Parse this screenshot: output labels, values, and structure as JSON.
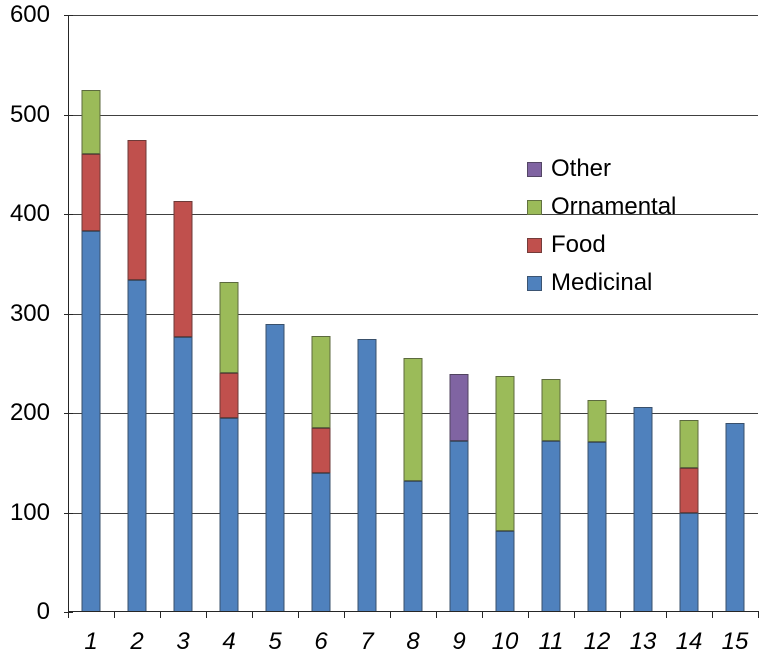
{
  "chart_data": {
    "type": "bar",
    "stacked": true,
    "title": "",
    "xlabel": "",
    "ylabel": "",
    "grid": true,
    "ylim": [
      0,
      600
    ],
    "ytick_interval": 100,
    "yticks": [
      "0",
      "100",
      "200",
      "300",
      "400",
      "500",
      "600"
    ],
    "categories": [
      "1",
      "2",
      "3",
      "4",
      "5",
      "6",
      "7",
      "8",
      "9",
      "10",
      "11",
      "12",
      "13",
      "14",
      "15"
    ],
    "series": [
      {
        "name": "Medicinal",
        "color": "#4F81BD",
        "values": [
          383,
          334,
          276,
          195,
          289,
          140,
          274,
          132,
          172,
          81,
          172,
          171,
          206,
          100,
          190
        ]
      },
      {
        "name": "Food",
        "color": "#C0504D",
        "values": [
          77,
          140,
          137,
          45,
          0,
          45,
          0,
          0,
          0,
          0,
          0,
          0,
          0,
          45,
          0
        ]
      },
      {
        "name": "Ornamental",
        "color": "#9BBB59",
        "values": [
          65,
          0,
          0,
          92,
          0,
          92,
          0,
          123,
          0,
          156,
          62,
          42,
          0,
          48,
          0
        ]
      },
      {
        "name": "Other",
        "color": "#8064A2",
        "values": [
          0,
          0,
          0,
          0,
          0,
          0,
          0,
          0,
          67,
          0,
          0,
          0,
          0,
          0,
          0
        ]
      }
    ],
    "legend_position": "middle-right",
    "legend_order": [
      "Other",
      "Ornamental",
      "Food",
      "Medicinal"
    ],
    "axis_color": "#262626",
    "grid_color": "#404040",
    "text_color": "#000000"
  }
}
